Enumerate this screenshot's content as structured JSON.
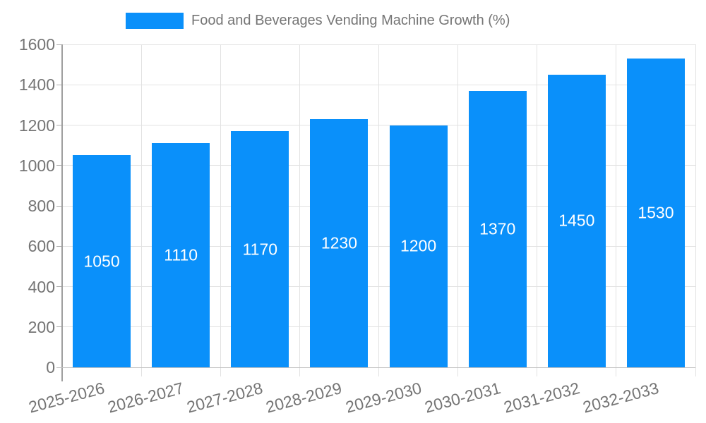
{
  "legend": {
    "label": "Food and Beverages Vending Machine Growth (%)"
  },
  "chart_data": {
    "type": "bar",
    "title": "Food and Beverages Vending Machine Growth (%)",
    "xlabel": "",
    "ylabel": "",
    "categories": [
      "2025-2026",
      "2026-2027",
      "2027-2028",
      "2028-2029",
      "2029-2030",
      "2030-2031",
      "2031-2032",
      "2032-2033"
    ],
    "series": [
      {
        "name": "Food and Beverages Vending Machine Growth (%)",
        "values": [
          1050,
          1110,
          1170,
          1230,
          1200,
          1370,
          1450,
          1530
        ]
      }
    ],
    "ylim": [
      0,
      1600
    ],
    "ytick_step": 200,
    "yticks": [
      0,
      200,
      400,
      600,
      800,
      1000,
      1200,
      1400,
      1600
    ],
    "grid": true,
    "legend_position": "top",
    "value_labels": "inside-center",
    "colors": {
      "bar": "#0a90fa",
      "axis_text": "#757575",
      "gridline": "#e2e2e2",
      "axis_line": "#9e9e9e",
      "bottom_axis_line": "#c2c2c2",
      "tick_mark": "#ababab",
      "value_label": "#ffffff",
      "background": "#ffffff"
    }
  }
}
